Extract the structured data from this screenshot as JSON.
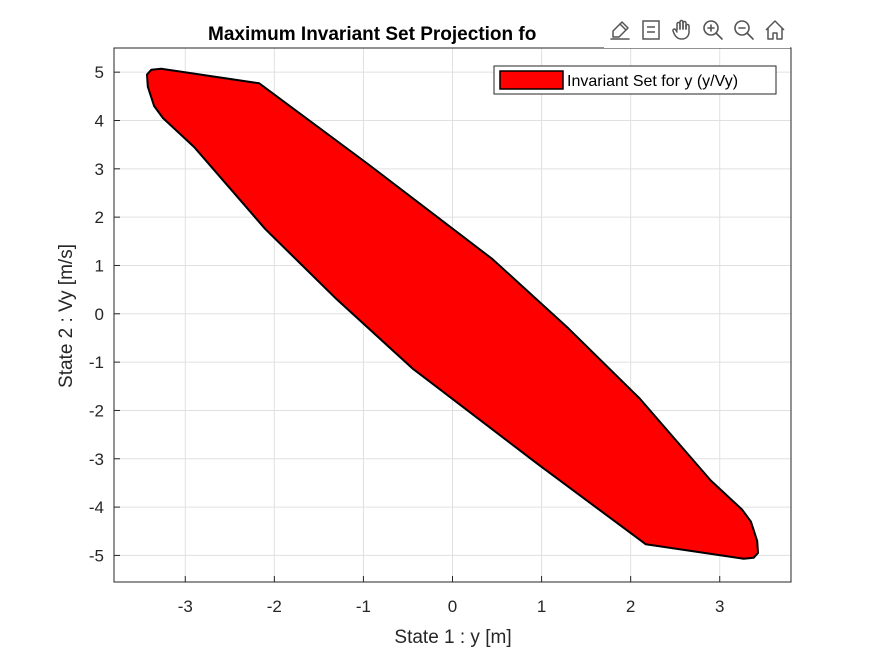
{
  "chart_data": {
    "type": "area",
    "title": "Maximum Invariant Set Projection fo",
    "xlabel": "State 1 : y [m]",
    "ylabel": "State 2 : Vy [m/s]",
    "xlim": [
      -3.8,
      3.8
    ],
    "ylim": [
      -5.55,
      5.5
    ],
    "xticks": [
      -3,
      -2,
      -1,
      0,
      1,
      2,
      3
    ],
    "yticks": [
      5,
      4,
      3,
      2,
      1,
      0,
      -1,
      -2,
      -3,
      -4,
      -5
    ],
    "grid": true,
    "legend_position": "top-right",
    "series": [
      {
        "name": "Invariant Set for y (y/Vy)",
        "fill_color": "#ff0000",
        "edge_color": "#000000",
        "x": [
          -3.27,
          -2.17,
          -0.95,
          0.45,
          1.3,
          2.1,
          2.9,
          3.25,
          3.35,
          3.42,
          3.43,
          3.38,
          3.27,
          2.17,
          0.95,
          -0.45,
          -1.3,
          -2.1,
          -2.9,
          -3.25,
          -3.35,
          -3.42,
          -3.43,
          -3.38,
          -3.27
        ],
        "y": [
          5.07,
          4.77,
          3.1,
          1.13,
          -0.3,
          -1.75,
          -3.45,
          -4.05,
          -4.3,
          -4.7,
          -4.95,
          -5.05,
          -5.07,
          -4.77,
          -3.1,
          -1.13,
          0.3,
          1.75,
          3.45,
          4.05,
          4.3,
          4.7,
          4.95,
          5.05,
          5.07
        ]
      }
    ]
  },
  "toolbar": {
    "icons": [
      "brush-icon",
      "legend-toggle-icon",
      "pan-hand-icon",
      "zoom-in-icon",
      "zoom-out-icon",
      "home-icon"
    ]
  },
  "colors": {
    "axes_text": "#262626",
    "grid": "#e0e0e0",
    "toolbar_icon": "#555555"
  }
}
